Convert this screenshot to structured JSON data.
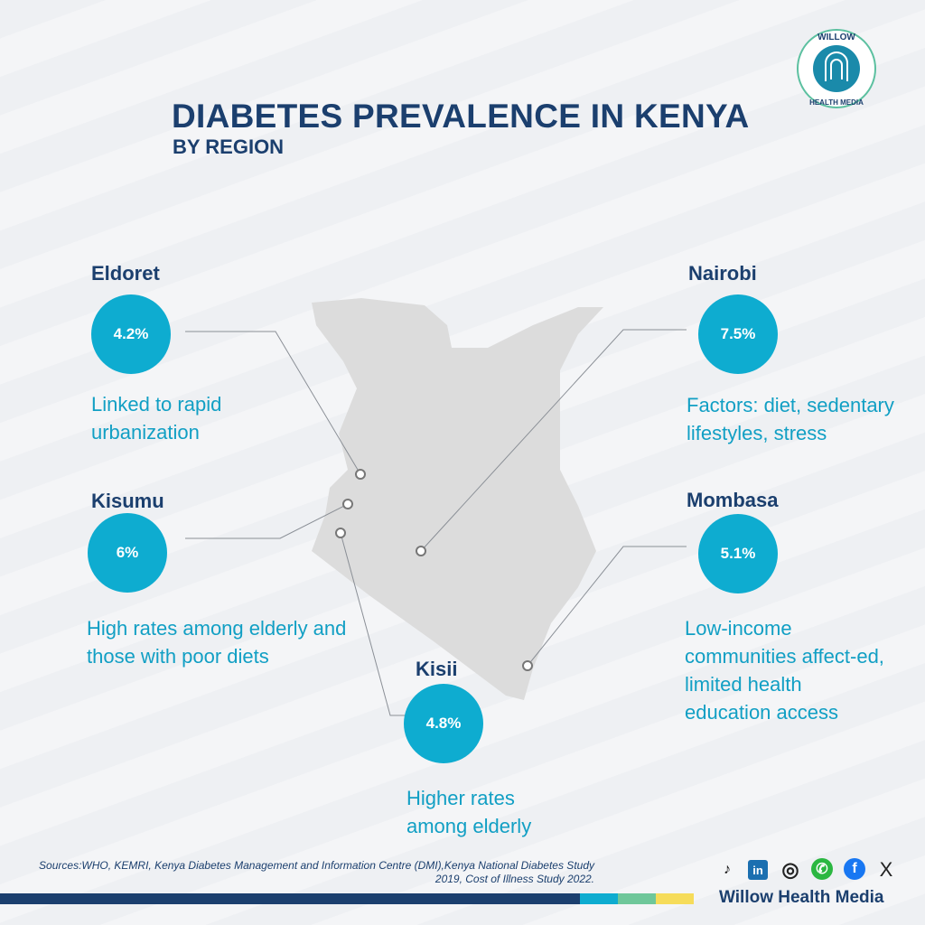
{
  "title": "DIABETES PREVALENCE IN KENYA",
  "subtitle": "BY REGION",
  "logo": {
    "top_text": "WILLOW",
    "bottom_text": "HEALTH MEDIA"
  },
  "regions": [
    {
      "name": "Eldoret",
      "value": "4.2%",
      "desc": "Linked to rapid urbanization"
    },
    {
      "name": "Kisumu",
      "value": "6%",
      "desc": "High rates among elderly and those with poor diets"
    },
    {
      "name": "Kisii",
      "value": "4.8%",
      "desc": "Higher rates among elderly"
    },
    {
      "name": "Nairobi",
      "value": "7.5%",
      "desc": "Factors: diet, sedentary lifestyles, stress"
    },
    {
      "name": "Mombasa",
      "value": "5.1%",
      "desc": "Low-income communities affect-ed, limited health education access"
    }
  ],
  "sources": "Sources:WHO, KEMRI, Kenya Diabetes Management and Information Centre (DMI),Kenya National Diabetes Study 2019, Cost of Illness Study 2022.",
  "brand": "Willow Health Media",
  "social": {
    "tiktok": "♪",
    "linkedin": "in",
    "instagram": "◎",
    "whatsapp": "✆",
    "facebook": "f",
    "x": "X"
  },
  "colors": {
    "navy": "#1b3f6e",
    "cyan": "#0eacd0",
    "green": "#6fc79a",
    "yellow": "#f6dc5a"
  }
}
